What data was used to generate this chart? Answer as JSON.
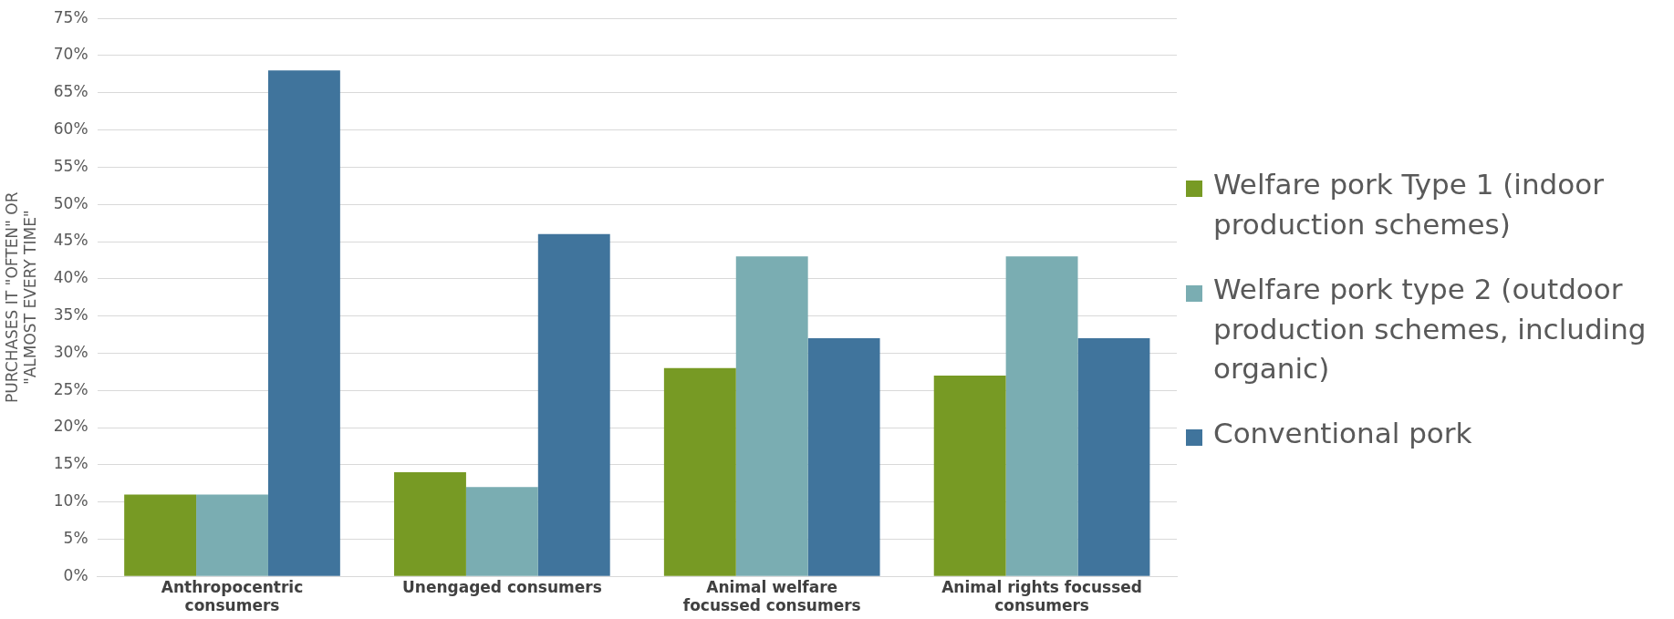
{
  "chart_data": {
    "type": "bar",
    "ylabel": "PURCHASES IT \"OFTEN\" OR\n\"ALMOST EVERY TIME\"",
    "categories": [
      "Anthropocentric\nconsumers",
      "Unengaged consumers",
      "Animal welfare\nfocussed consumers",
      "Animal rights focussed\nconsumers"
    ],
    "series": [
      {
        "name": "Welfare pork Type 1 (indoor production schemes)",
        "color": "#779a24",
        "values": [
          11,
          14,
          28,
          27
        ]
      },
      {
        "name": "Welfare pork type 2 (outdoor production schemes, including organic)",
        "color": "#7aadb2",
        "values": [
          11,
          12,
          43,
          43
        ]
      },
      {
        "name": "Conventional pork",
        "color": "#40749c",
        "values": [
          68,
          46,
          32,
          32
        ]
      }
    ],
    "ylim": [
      0,
      75
    ],
    "yticks": [
      {
        "value": 0,
        "label": "0%"
      },
      {
        "value": 5,
        "label": "5%"
      },
      {
        "value": 10,
        "label": "10%"
      },
      {
        "value": 15,
        "label": "15%"
      },
      {
        "value": 20,
        "label": "20%"
      },
      {
        "value": 25,
        "label": "25%"
      },
      {
        "value": 30,
        "label": "30%"
      },
      {
        "value": 35,
        "label": "35%"
      },
      {
        "value": 40,
        "label": "40%"
      },
      {
        "value": 45,
        "label": "45%"
      },
      {
        "value": 50,
        "label": "50%"
      },
      {
        "value": 55,
        "label": "55%"
      },
      {
        "value": 60,
        "label": "60%"
      },
      {
        "value": 65,
        "label": "65%"
      },
      {
        "value": 70,
        "label": "70%"
      },
      {
        "value": 75,
        "label": "75%"
      }
    ],
    "grid": "y",
    "legend": "right"
  }
}
